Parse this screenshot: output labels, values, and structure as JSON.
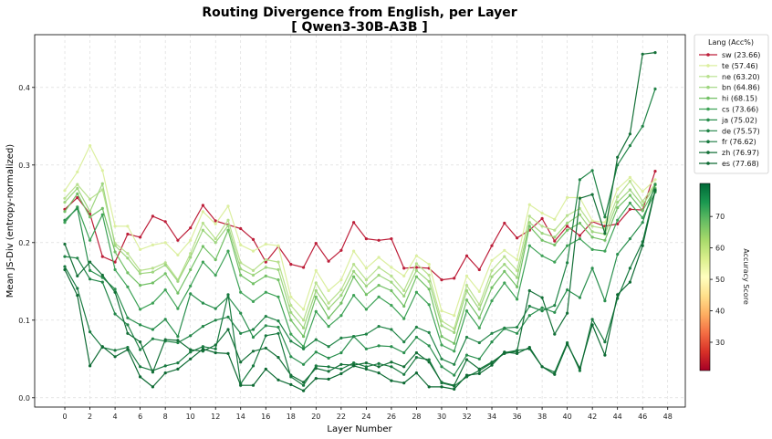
{
  "chart_data": {
    "type": "line",
    "title": "Routing Divergence from English, per Layer",
    "subtitle": "[ Qwen3-30B-A3B ]",
    "xlabel": "Layer Number",
    "ylabel": "Mean JS-Div (entropy-normalized)",
    "xlim": [
      -2.4,
      49.4
    ],
    "ylim": [
      -0.012,
      0.468
    ],
    "x_ticks": [
      0,
      2,
      4,
      6,
      8,
      10,
      12,
      14,
      16,
      18,
      20,
      22,
      24,
      26,
      28,
      30,
      32,
      34,
      36,
      38,
      40,
      42,
      44,
      46,
      48
    ],
    "y_ticks": [
      0.0,
      0.1,
      0.2,
      0.3,
      0.4
    ],
    "y_tick_labels": [
      "0.0",
      "0.1",
      "0.2",
      "0.3",
      "0.4"
    ],
    "grid": true,
    "legend": {
      "title": "Lang (Acc%)",
      "placement": "outside-right-top",
      "labels": [
        "sw (23.66)",
        "te (57.46)",
        "ne (63.20)",
        "bn (64.86)",
        "hi (68.15)",
        "cs (73.66)",
        "ja (75.02)",
        "de (75.57)",
        "fr (76.62)",
        "zh (76.97)",
        "es (77.68)"
      ]
    },
    "colorbar": {
      "label": "Accuracy Score",
      "range": [
        21.0,
        80.5
      ],
      "ticks": [
        30,
        40,
        50,
        60,
        70
      ],
      "colors": [
        "#a50026",
        "#d73027",
        "#f46d43",
        "#fdae61",
        "#fee08b",
        "#ffffbf",
        "#d9ef8b",
        "#a6d96a",
        "#66bd63",
        "#1a9850",
        "#006837"
      ]
    },
    "x": [
      0,
      1,
      2,
      3,
      4,
      5,
      6,
      7,
      8,
      9,
      10,
      11,
      12,
      13,
      14,
      15,
      16,
      17,
      18,
      19,
      20,
      21,
      22,
      23,
      24,
      25,
      26,
      27,
      28,
      29,
      30,
      31,
      32,
      33,
      34,
      35,
      36,
      37,
      38,
      39,
      40,
      41,
      42,
      43,
      44,
      45,
      46,
      47
    ],
    "series": [
      {
        "name": "sw",
        "accuracy": 23.66,
        "color": "#bd1f3a",
        "values": [
          0.243,
          0.258,
          0.237,
          0.182,
          0.175,
          0.211,
          0.207,
          0.234,
          0.227,
          0.203,
          0.219,
          0.248,
          0.228,
          0.223,
          0.218,
          0.204,
          0.175,
          0.195,
          0.172,
          0.168,
          0.199,
          0.176,
          0.19,
          0.226,
          0.205,
          0.203,
          0.205,
          0.167,
          0.168,
          0.167,
          0.152,
          0.154,
          0.183,
          0.165,
          0.196,
          0.225,
          0.206,
          0.216,
          0.231,
          0.202,
          0.221,
          0.209,
          0.227,
          0.221,
          0.224,
          0.243,
          0.242,
          0.292
        ]
      },
      {
        "name": "te",
        "accuracy": 57.46,
        "color": "#dcefa0",
        "values": [
          0.267,
          0.291,
          0.325,
          0.293,
          0.221,
          0.221,
          0.191,
          0.197,
          0.2,
          0.184,
          0.203,
          0.24,
          0.224,
          0.247,
          0.197,
          0.189,
          0.198,
          0.196,
          0.13,
          0.114,
          0.164,
          0.138,
          0.152,
          0.189,
          0.167,
          0.181,
          0.168,
          0.157,
          0.183,
          0.172,
          0.112,
          0.106,
          0.157,
          0.137,
          0.177,
          0.19,
          0.178,
          0.249,
          0.238,
          0.23,
          0.258,
          0.258,
          0.228,
          0.226,
          0.269,
          0.284,
          0.266,
          0.281
        ]
      },
      {
        "name": "ne",
        "accuracy": 63.2,
        "color": "#b8e08e",
        "values": [
          0.257,
          0.275,
          0.256,
          0.268,
          0.199,
          0.186,
          0.164,
          0.167,
          0.174,
          0.152,
          0.186,
          0.225,
          0.205,
          0.229,
          0.174,
          0.164,
          0.178,
          0.175,
          0.119,
          0.1,
          0.148,
          0.122,
          0.139,
          0.172,
          0.152,
          0.168,
          0.157,
          0.138,
          0.173,
          0.158,
          0.099,
          0.089,
          0.145,
          0.12,
          0.164,
          0.182,
          0.164,
          0.234,
          0.221,
          0.216,
          0.235,
          0.244,
          0.221,
          0.218,
          0.259,
          0.279,
          0.253,
          0.276
        ]
      },
      {
        "name": "bn",
        "accuracy": 64.86,
        "color": "#9ed57f",
        "values": [
          0.252,
          0.27,
          0.24,
          0.276,
          0.196,
          0.18,
          0.16,
          0.162,
          0.171,
          0.15,
          0.181,
          0.216,
          0.2,
          0.222,
          0.166,
          0.158,
          0.168,
          0.165,
          0.11,
          0.09,
          0.138,
          0.115,
          0.132,
          0.163,
          0.144,
          0.158,
          0.149,
          0.131,
          0.164,
          0.15,
          0.093,
          0.084,
          0.138,
          0.114,
          0.156,
          0.172,
          0.155,
          0.226,
          0.212,
          0.207,
          0.225,
          0.236,
          0.214,
          0.211,
          0.252,
          0.268,
          0.248,
          0.274
        ]
      },
      {
        "name": "hi",
        "accuracy": 68.15,
        "color": "#72c065",
        "values": [
          0.24,
          0.263,
          0.233,
          0.244,
          0.188,
          0.161,
          0.145,
          0.148,
          0.16,
          0.135,
          0.165,
          0.195,
          0.178,
          0.216,
          0.158,
          0.147,
          0.157,
          0.152,
          0.1,
          0.079,
          0.13,
          0.103,
          0.122,
          0.156,
          0.133,
          0.145,
          0.138,
          0.118,
          0.156,
          0.14,
          0.079,
          0.07,
          0.126,
          0.103,
          0.142,
          0.163,
          0.143,
          0.221,
          0.203,
          0.197,
          0.216,
          0.225,
          0.207,
          0.203,
          0.245,
          0.261,
          0.241,
          0.27
        ]
      },
      {
        "name": "cs",
        "accuracy": 73.66,
        "color": "#3ea257",
        "values": [
          0.226,
          0.246,
          0.203,
          0.236,
          0.165,
          0.143,
          0.114,
          0.122,
          0.139,
          0.115,
          0.144,
          0.175,
          0.158,
          0.189,
          0.136,
          0.124,
          0.136,
          0.13,
          0.082,
          0.066,
          0.111,
          0.092,
          0.106,
          0.132,
          0.114,
          0.13,
          0.119,
          0.102,
          0.136,
          0.12,
          0.068,
          0.06,
          0.112,
          0.09,
          0.125,
          0.148,
          0.127,
          0.196,
          0.183,
          0.175,
          0.196,
          0.205,
          0.191,
          0.189,
          0.229,
          0.251,
          0.232,
          0.265
        ]
      },
      {
        "name": "ja",
        "accuracy": 75.02,
        "color": "#2a8f4e",
        "values": [
          0.229,
          0.244,
          0.164,
          0.155,
          0.14,
          0.103,
          0.094,
          0.088,
          0.101,
          0.079,
          0.134,
          0.122,
          0.115,
          0.13,
          0.109,
          0.078,
          0.093,
          0.091,
          0.053,
          0.043,
          0.059,
          0.051,
          0.058,
          0.079,
          0.063,
          0.067,
          0.066,
          0.058,
          0.078,
          0.067,
          0.04,
          0.029,
          0.055,
          0.05,
          0.072,
          0.089,
          0.083,
          0.106,
          0.116,
          0.11,
          0.139,
          0.129,
          0.167,
          0.125,
          0.185,
          0.205,
          0.226,
          0.275
        ]
      },
      {
        "name": "de",
        "accuracy": 75.57,
        "color": "#218447",
        "values": [
          0.182,
          0.18,
          0.153,
          0.149,
          0.108,
          0.094,
          0.062,
          0.076,
          0.073,
          0.071,
          0.08,
          0.092,
          0.1,
          0.104,
          0.083,
          0.088,
          0.105,
          0.099,
          0.073,
          0.063,
          0.075,
          0.066,
          0.077,
          0.079,
          0.082,
          0.092,
          0.088,
          0.072,
          0.091,
          0.084,
          0.05,
          0.043,
          0.078,
          0.071,
          0.083,
          0.09,
          0.091,
          0.118,
          0.112,
          0.119,
          0.174,
          0.281,
          0.293,
          0.233,
          0.3,
          0.325,
          0.35,
          0.398
        ]
      },
      {
        "name": "fr",
        "accuracy": 76.62,
        "color": "#197a40",
        "values": [
          0.169,
          0.141,
          0.085,
          0.065,
          0.061,
          0.065,
          0.04,
          0.035,
          0.041,
          0.045,
          0.059,
          0.066,
          0.063,
          0.133,
          0.018,
          0.041,
          0.08,
          0.083,
          0.027,
          0.016,
          0.041,
          0.04,
          0.037,
          0.045,
          0.04,
          0.044,
          0.04,
          0.03,
          0.052,
          0.049,
          0.019,
          0.015,
          0.027,
          0.035,
          0.045,
          0.058,
          0.061,
          0.063,
          0.04,
          0.033,
          0.071,
          0.035,
          0.101,
          0.072,
          0.128,
          0.167,
          0.201,
          0.268
        ]
      },
      {
        "name": "zh",
        "accuracy": 76.97,
        "color": "#147038",
        "values": [
          0.198,
          0.157,
          0.175,
          0.158,
          0.136,
          0.083,
          0.072,
          0.033,
          0.075,
          0.074,
          0.062,
          0.06,
          0.068,
          0.088,
          0.046,
          0.06,
          0.064,
          0.052,
          0.029,
          0.02,
          0.038,
          0.034,
          0.043,
          0.042,
          0.045,
          0.04,
          0.046,
          0.04,
          0.058,
          0.046,
          0.02,
          0.016,
          0.049,
          0.037,
          0.046,
          0.057,
          0.06,
          0.138,
          0.129,
          0.082,
          0.109,
          0.257,
          0.262,
          0.212,
          0.31,
          0.34,
          0.443,
          0.445
        ]
      },
      {
        "name": "es",
        "accuracy": 77.68,
        "color": "#0d6a33",
        "values": [
          0.165,
          0.132,
          0.041,
          0.066,
          0.053,
          0.062,
          0.027,
          0.014,
          0.032,
          0.037,
          0.05,
          0.063,
          0.058,
          0.057,
          0.016,
          0.016,
          0.037,
          0.023,
          0.017,
          0.009,
          0.025,
          0.024,
          0.031,
          0.041,
          0.037,
          0.032,
          0.022,
          0.019,
          0.032,
          0.014,
          0.014,
          0.011,
          0.029,
          0.031,
          0.042,
          0.059,
          0.057,
          0.065,
          0.04,
          0.03,
          0.069,
          0.038,
          0.094,
          0.055,
          0.133,
          0.149,
          0.196,
          0.267
        ]
      }
    ]
  }
}
